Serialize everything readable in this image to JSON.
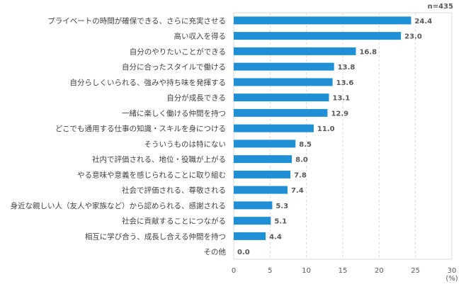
{
  "chart_data": {
    "type": "bar",
    "orientation": "horizontal",
    "annotation": "n=435",
    "xlabel": "(%)",
    "xlim": [
      0,
      30
    ],
    "xticks": [
      0,
      5,
      10,
      15,
      20,
      25,
      30
    ],
    "grid": "vertical dashed",
    "bar_color": "#1f8fd6",
    "categories": [
      "プライベートの時間が確保できる、さらに充実させる",
      "高い収入を得る",
      "自分のやりたいことができる",
      "自分に合ったスタイルで働ける",
      "自分らしくいられる、強みや持ち味を発揮する",
      "自分が成長できる",
      "一緒に楽しく働ける仲間を持つ",
      "どこでも通用する仕事の知識・スキルを身につける",
      "そういうものは特にない",
      "社内で評価される、地位・役職が上がる",
      "やる意味や意義を感じられることに取り組む",
      "社会で評価される、尊敬される",
      "身近な親しい人（友人や家族など）から認められる、感謝される",
      "社会に貢献することにつながる",
      "相互に学び合う、成長し合える仲間を持つ",
      "その他"
    ],
    "values": [
      24.4,
      23.0,
      16.8,
      13.8,
      13.6,
      13.1,
      12.9,
      11.0,
      8.5,
      8.0,
      7.8,
      7.4,
      5.3,
      5.1,
      4.4,
      0.0
    ],
    "value_labels": [
      "24.4",
      "23.0",
      "16.8",
      "13.8",
      "13.6",
      "13.1",
      "12.9",
      "11.0",
      "8.5",
      "8.0",
      "7.8",
      "7.4",
      "5.3",
      "5.1",
      "4.4",
      "0.0"
    ]
  }
}
